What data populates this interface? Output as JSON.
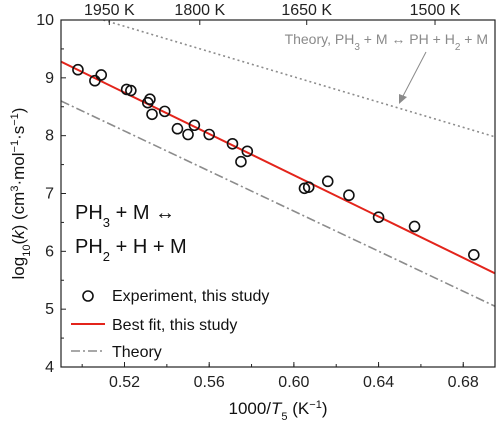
{
  "chart_data": {
    "type": "scatter",
    "xlabel_parts": [
      "1000/",
      "T",
      "5",
      " (K",
      "−1",
      ")"
    ],
    "ylabel_parts": [
      "log",
      "10",
      "(",
      "k",
      ") (cm",
      "3",
      "·mol",
      "−1",
      "·s",
      "−1",
      ")"
    ],
    "xlim": [
      0.49,
      0.695
    ],
    "ylim": [
      4,
      10
    ],
    "x_ticks": [
      0.52,
      0.56,
      0.6,
      0.64,
      0.68
    ],
    "x_tick_labels": [
      "0.52",
      "0.56",
      "0.60",
      "0.64",
      "0.68"
    ],
    "y_ticks": [
      4,
      5,
      6,
      7,
      8,
      9,
      10
    ],
    "y_tick_labels": [
      "4",
      "5",
      "6",
      "7",
      "8",
      "9",
      "10"
    ],
    "top_axis": {
      "temperatures_K": [
        1950,
        1800,
        1650,
        1500
      ],
      "labels": [
        "1950 K",
        "1800 K",
        "1650 K",
        "1500 K"
      ]
    },
    "reaction": {
      "line1_parts": [
        "PH",
        "3",
        " + M ↔"
      ],
      "line2_parts": [
        "PH",
        "2",
        " + H + M"
      ]
    },
    "annotation": {
      "parts": [
        "Theory, PH",
        "3",
        " + M ↔ PH + H",
        "2",
        " + M"
      ]
    },
    "legend": {
      "position": "bottom-left",
      "entries": [
        "Experiment, this study",
        "Best fit, this study",
        "Theory"
      ]
    },
    "series": [
      {
        "name": "Experiment, this study",
        "type": "scatter",
        "color": "#111111",
        "points": [
          [
            0.498,
            9.14
          ],
          [
            0.506,
            8.95
          ],
          [
            0.509,
            9.05
          ],
          [
            0.521,
            8.8
          ],
          [
            0.523,
            8.78
          ],
          [
            0.531,
            8.57
          ],
          [
            0.532,
            8.63
          ],
          [
            0.533,
            8.37
          ],
          [
            0.539,
            8.42
          ],
          [
            0.545,
            8.12
          ],
          [
            0.55,
            8.02
          ],
          [
            0.553,
            8.18
          ],
          [
            0.56,
            8.02
          ],
          [
            0.571,
            7.86
          ],
          [
            0.575,
            7.55
          ],
          [
            0.578,
            7.73
          ],
          [
            0.605,
            7.09
          ],
          [
            0.607,
            7.11
          ],
          [
            0.616,
            7.21
          ],
          [
            0.626,
            6.97
          ],
          [
            0.64,
            6.59
          ],
          [
            0.657,
            6.43
          ],
          [
            0.685,
            5.94
          ]
        ]
      },
      {
        "name": "Best fit, this study",
        "type": "line",
        "color": "#e3241b",
        "points": [
          [
            0.49,
            9.28
          ],
          [
            0.695,
            5.62
          ]
        ]
      },
      {
        "name": "Theory",
        "type": "line",
        "color": "#8c8c8c",
        "style": "dash-dot",
        "points": [
          [
            0.49,
            8.6
          ],
          [
            0.695,
            5.05
          ]
        ]
      },
      {
        "name": "Theory, PH3 + M ↔ PH + H2 + M",
        "type": "line",
        "color": "#8c8c8c",
        "style": "dotted",
        "points": [
          [
            0.51,
            10.0
          ],
          [
            0.695,
            7.98
          ]
        ]
      }
    ]
  }
}
